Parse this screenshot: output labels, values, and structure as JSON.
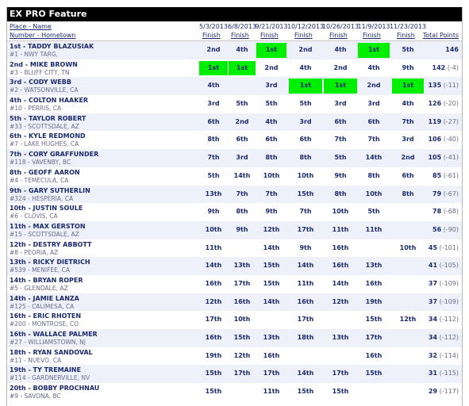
{
  "title": "EX PRO Feature",
  "header": {
    "place_label": "Place - Name",
    "number_label": "Number - Hometown",
    "dates": [
      "5/3/2013",
      "6/8/2013",
      "9/21/2013",
      "10/12/2013",
      "10/26/2013",
      "11/9/2013",
      "11/23/2013"
    ],
    "finish_label": "Finish",
    "total_label": "Total Points"
  },
  "colors": {
    "highlight": "#00ee00",
    "title_bg": "#000000",
    "alt_row": "#eef1fa",
    "text": "#1a2a6c"
  },
  "riders": [
    {
      "place_name": "1st - TADDY BLAZUSIAK",
      "hometown": "#1 - NWY TARG,",
      "finishes": [
        "2nd",
        "4th",
        "1st",
        "2nd",
        "4th",
        "1st",
        "5th"
      ],
      "highlight": [
        false,
        false,
        true,
        false,
        false,
        true,
        false
      ],
      "total": "146",
      "diff": ""
    },
    {
      "place_name": "2nd - MIKE BROWN",
      "hometown": "#3 - BLUFF CITY, TN",
      "finishes": [
        "1st",
        "1st",
        "2nd",
        "4th",
        "2nd",
        "4th",
        "9th"
      ],
      "highlight": [
        true,
        true,
        false,
        false,
        false,
        false,
        false
      ],
      "total": "142",
      "diff": "(-4)"
    },
    {
      "place_name": "3rd - CODY WEBB",
      "hometown": "#2 - WATSONVILLE, CA",
      "finishes": [
        "4th",
        "",
        "3rd",
        "1st",
        "1st",
        "2nd",
        "1st"
      ],
      "highlight": [
        false,
        false,
        false,
        true,
        true,
        false,
        true
      ],
      "total": "135",
      "diff": "(-11)"
    },
    {
      "place_name": "4th - COLTON HAAKER",
      "hometown": "#10 - PERRIS, CA",
      "finishes": [
        "3rd",
        "5th",
        "5th",
        "5th",
        "3rd",
        "3rd",
        "4th"
      ],
      "highlight": [
        false,
        false,
        false,
        false,
        false,
        false,
        false
      ],
      "total": "126",
      "diff": "(-20)"
    },
    {
      "place_name": "5th - TAYLOR ROBERT",
      "hometown": "#33 - SCOTTSDALE, AZ",
      "finishes": [
        "6th",
        "2nd",
        "4th",
        "3rd",
        "6th",
        "6th",
        "7th"
      ],
      "highlight": [
        false,
        false,
        false,
        false,
        false,
        false,
        false
      ],
      "total": "119",
      "diff": "(-27)"
    },
    {
      "place_name": "6th - KYLE REDMOND",
      "hometown": "#7 - LAKE HUGHES, CA",
      "finishes": [
        "8th",
        "6th",
        "6th",
        "6th",
        "7th",
        "7th",
        "3rd"
      ],
      "highlight": [
        false,
        false,
        false,
        false,
        false,
        false,
        false
      ],
      "total": "106",
      "diff": "(-40)"
    },
    {
      "place_name": "7th - CORY GRAFFUNDER",
      "hometown": "#118 - VAVENBY, BC",
      "finishes": [
        "7th",
        "3rd",
        "8th",
        "8th",
        "5th",
        "14th",
        "2nd"
      ],
      "highlight": [
        false,
        false,
        false,
        false,
        false,
        false,
        false
      ],
      "total": "105",
      "diff": "(-41)"
    },
    {
      "place_name": "8th - GEOFF AARON",
      "hometown": "#4 - TEMECULA, CA",
      "finishes": [
        "5th",
        "14th",
        "10th",
        "10th",
        "9th",
        "8th",
        "6th"
      ],
      "highlight": [
        false,
        false,
        false,
        false,
        false,
        false,
        false
      ],
      "total": "85",
      "diff": "(-61)"
    },
    {
      "place_name": "9th - GARY SUTHERLIN",
      "hometown": "#324 - HESPERIA, CA",
      "finishes": [
        "13th",
        "7th",
        "7th",
        "15th",
        "8th",
        "10th",
        "8th"
      ],
      "highlight": [
        false,
        false,
        false,
        false,
        false,
        false,
        false
      ],
      "total": "79",
      "diff": "(-67)"
    },
    {
      "place_name": "10th - JUSTIN SOULE",
      "hometown": "#6 - CLOVIS, CA",
      "finishes": [
        "9th",
        "8th",
        "9th",
        "7th",
        "10th",
        "5th",
        ""
      ],
      "highlight": [
        false,
        false,
        false,
        false,
        false,
        false,
        false
      ],
      "total": "78",
      "diff": "(-68)"
    },
    {
      "place_name": "11th - MAX GERSTON",
      "hometown": "#15 - SCOTTSDALE, AZ",
      "finishes": [
        "10th",
        "9th",
        "12th",
        "17th",
        "11th",
        "11th",
        ""
      ],
      "highlight": [
        false,
        false,
        false,
        false,
        false,
        false,
        false
      ],
      "total": "56",
      "diff": "(-90)"
    },
    {
      "place_name": "12th - DESTRY ABBOTT",
      "hometown": "#8 - PEORIA, AZ",
      "finishes": [
        "11th",
        "",
        "14th",
        "9th",
        "16th",
        "",
        "10th"
      ],
      "highlight": [
        false,
        false,
        false,
        false,
        false,
        false,
        false
      ],
      "total": "45",
      "diff": "(-101)"
    },
    {
      "place_name": "13th - RICKY DIETRICH",
      "hometown": "#539 - MENIFEE, CA",
      "finishes": [
        "14th",
        "13th",
        "15th",
        "14th",
        "16th",
        "13th",
        ""
      ],
      "highlight": [
        false,
        false,
        false,
        false,
        false,
        false,
        false
      ],
      "total": "41",
      "diff": "(-105)"
    },
    {
      "place_name": "14th - BRYAN ROPER",
      "hometown": "#5 - GLENDALE, AZ",
      "finishes": [
        "16th",
        "17th",
        "15th",
        "11th",
        "14th",
        "16th",
        ""
      ],
      "highlight": [
        false,
        false,
        false,
        false,
        false,
        false,
        false
      ],
      "total": "37",
      "diff": "(-109)"
    },
    {
      "place_name": "14th - JAMIE LANZA",
      "hometown": "#125 - CALIMESA, CA",
      "finishes": [
        "12th",
        "16th",
        "14th",
        "16th",
        "12th",
        "19th",
        ""
      ],
      "highlight": [
        false,
        false,
        false,
        false,
        false,
        false,
        false
      ],
      "total": "37",
      "diff": "(-109)"
    },
    {
      "place_name": "16th - ERIC RHOTEN",
      "hometown": "#200 - MONTROSE, CO",
      "finishes": [
        "17th",
        "10th",
        "",
        "17th",
        "",
        "15th",
        "12th"
      ],
      "highlight": [
        false,
        false,
        false,
        false,
        false,
        false,
        false
      ],
      "total": "34",
      "diff": "(-112)"
    },
    {
      "place_name": "16th - WALLACE PALMER",
      "hometown": "#27 - WILLIAMSTOWN, NJ",
      "finishes": [
        "16th",
        "15th",
        "13th",
        "18th",
        "13th",
        "17th",
        ""
      ],
      "highlight": [
        false,
        false,
        false,
        false,
        false,
        false,
        false
      ],
      "total": "34",
      "diff": "(-112)"
    },
    {
      "place_name": "18th - RYAN SANDOVAL",
      "hometown": "#11 - NUEVO, CA",
      "finishes": [
        "19th",
        "12th",
        "16th",
        "",
        "",
        "16th",
        ""
      ],
      "highlight": [
        false,
        false,
        false,
        false,
        false,
        false,
        false
      ],
      "total": "32",
      "diff": "(-114)"
    },
    {
      "place_name": "19th - TY TREMAINE",
      "hometown": "#114 - GARDNERVILLE, NV",
      "finishes": [
        "15th",
        "17th",
        "17th",
        "14th",
        "17th",
        "15th",
        ""
      ],
      "highlight": [
        false,
        false,
        false,
        false,
        false,
        false,
        false
      ],
      "total": "31",
      "diff": "(-115)"
    },
    {
      "place_name": "20th - BOBBY PROCHNAU",
      "hometown": "#9 - SAVONA, BC",
      "finishes": [
        "15th",
        "",
        "11th",
        "15th",
        "15th",
        "",
        ""
      ],
      "highlight": [
        false,
        false,
        false,
        false,
        false,
        false,
        false
      ],
      "total": "29",
      "diff": "(-117)"
    }
  ]
}
